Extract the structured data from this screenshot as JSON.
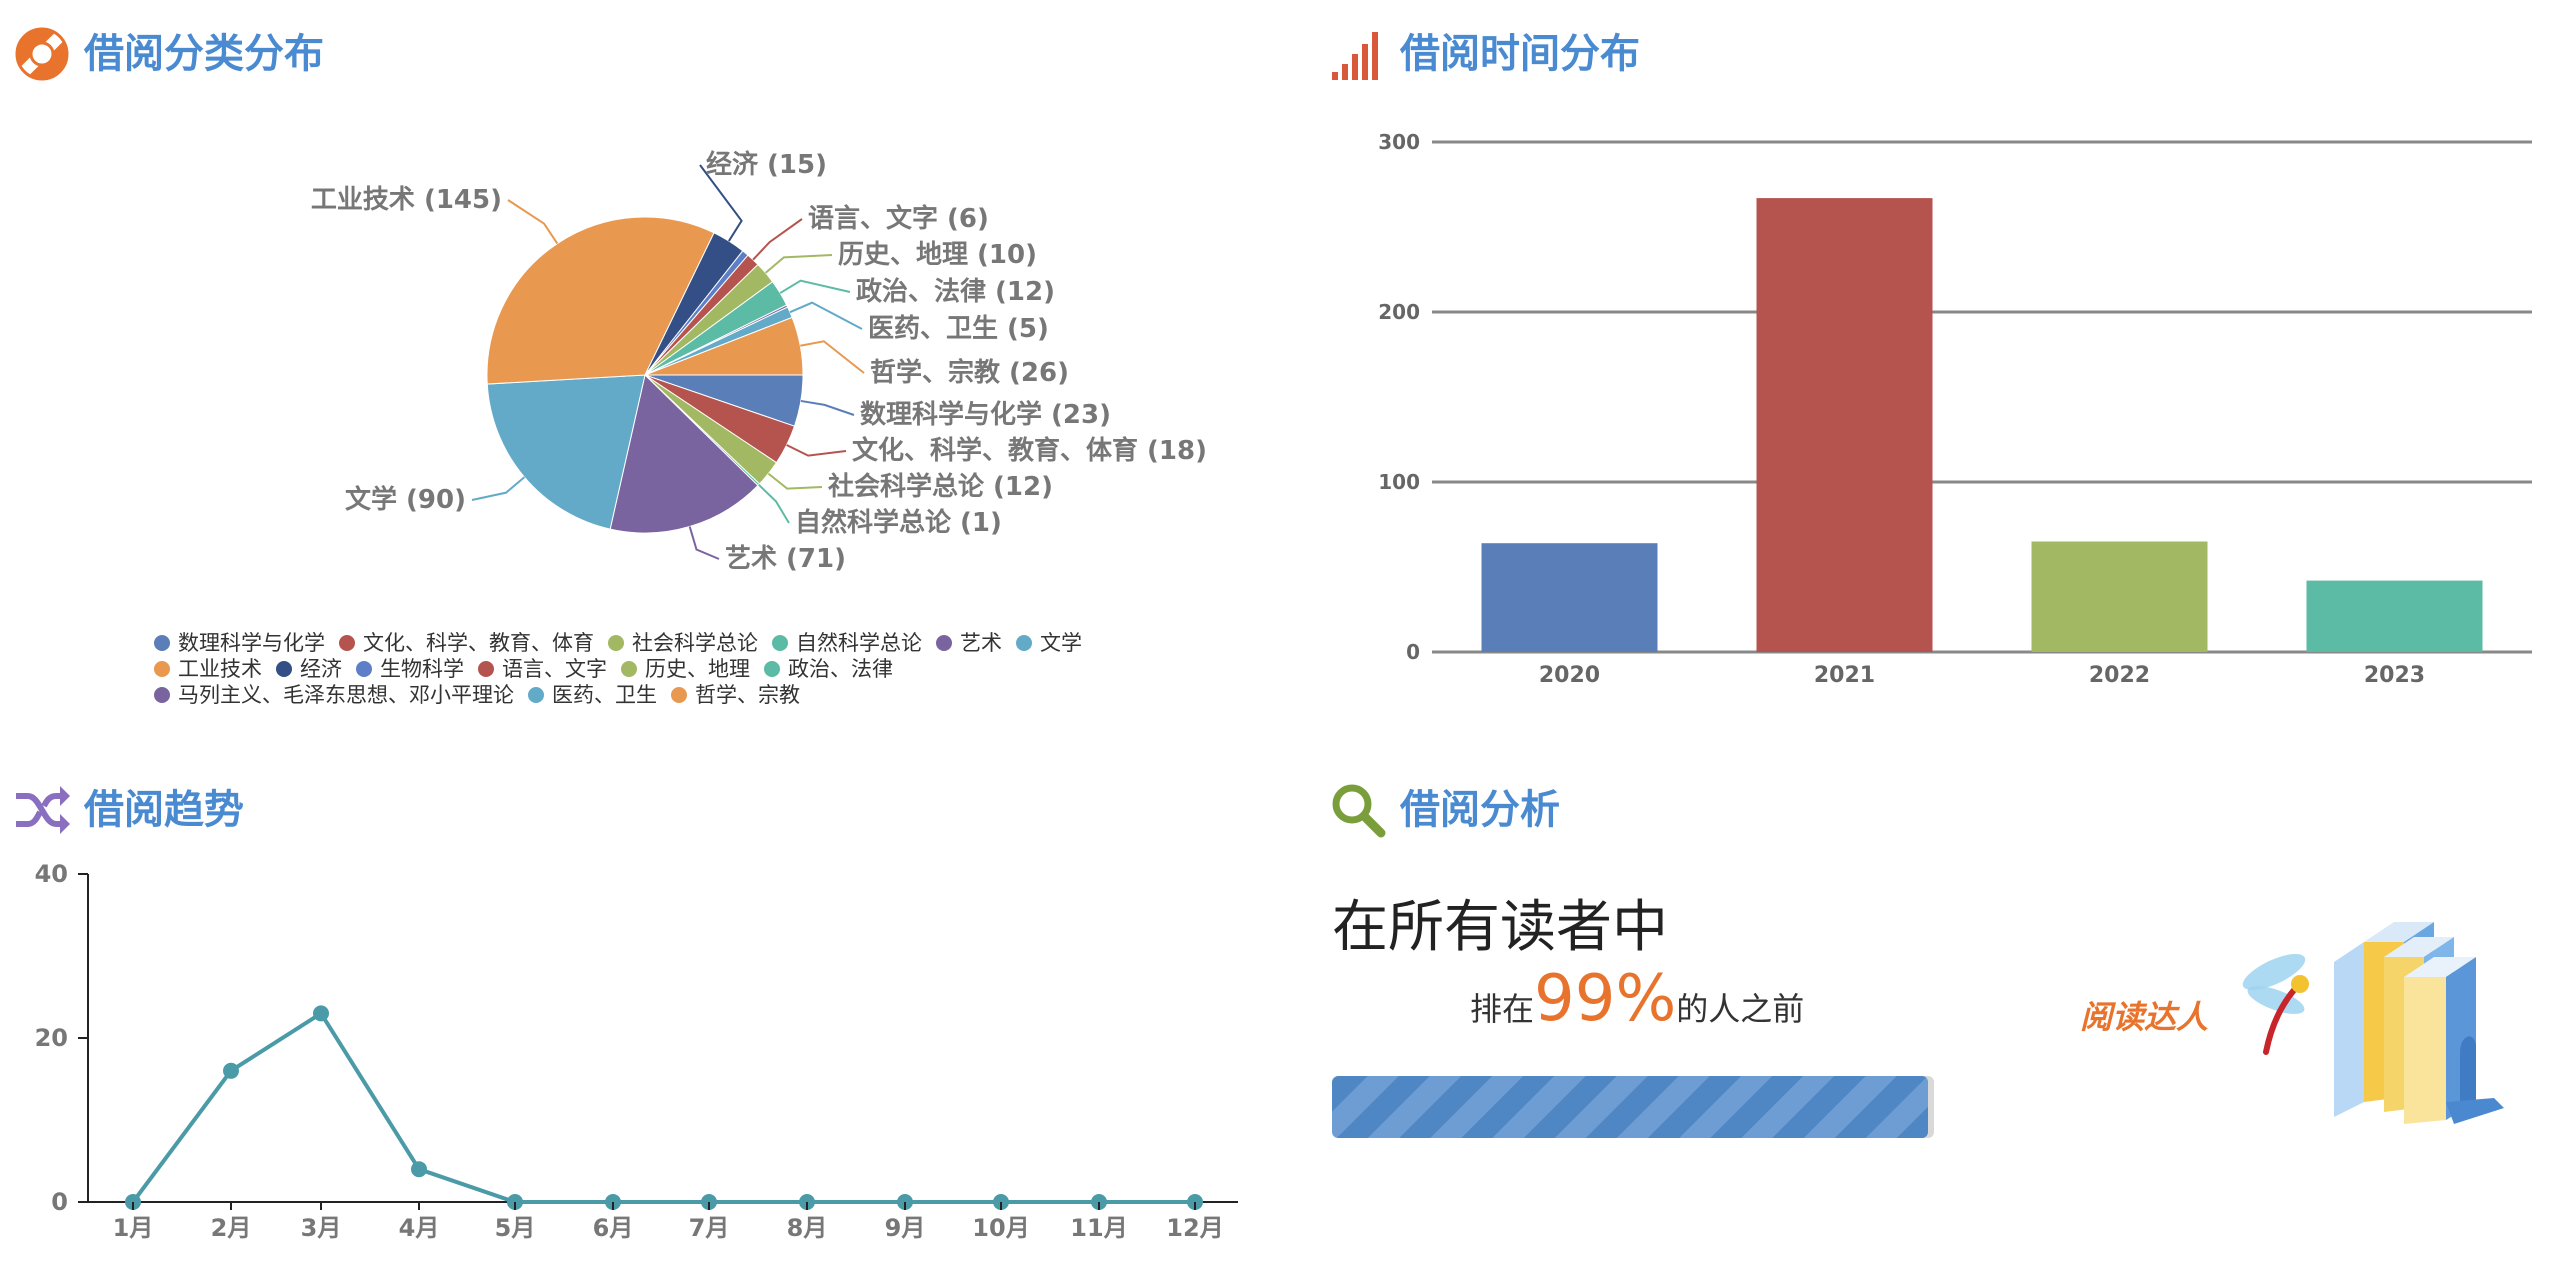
{
  "panels": {
    "category": {
      "title": "借阅分类分布",
      "icon": "lifebuoy-icon",
      "icon_color": "#e8732d"
    },
    "time": {
      "title": "借阅时间分布",
      "icon": "signal-bars-icon",
      "icon_color": "#d9573a"
    },
    "trend": {
      "title": "借阅趋势",
      "icon": "shuffle-icon",
      "icon_color": "#8a6fc0"
    },
    "analysis": {
      "title": "借阅分析",
      "icon": "search-icon",
      "icon_color": "#7a9e3c"
    }
  },
  "analysis": {
    "heading": "在所有读者中",
    "prefix": "排在",
    "percent": "99%",
    "suffix": "的人之前",
    "progress": 0.99,
    "badge_text": "阅读达人"
  },
  "chart_data": [
    {
      "type": "pie",
      "slices": [
        {
          "name": "数理科学与化学",
          "value": 23,
          "label": "数理科学与化学 (23)",
          "color": "#5a7fb8"
        },
        {
          "name": "文化、科学、教育、体育",
          "value": 18,
          "label": "文化、科学、教育、体育 (18)",
          "color": "#b5534f"
        },
        {
          "name": "社会科学总论",
          "value": 12,
          "label": "社会科学总论 (12)",
          "color": "#a2b862"
        },
        {
          "name": "自然科学总论",
          "value": 1,
          "label": "自然科学总论 (1)",
          "color": "#5bbba5"
        },
        {
          "name": "艺术",
          "value": 71,
          "label": "艺术 (71)",
          "color": "#7a64a0"
        },
        {
          "name": "文学",
          "value": 90,
          "label": "文学 (90)",
          "color": "#62aac8"
        },
        {
          "name": "工业技术",
          "value": 145,
          "label": "工业技术 (145)",
          "color": "#e8984f"
        },
        {
          "name": "经济",
          "value": 15,
          "label": "经济 (15)",
          "color": "#344f85"
        },
        {
          "name": "生物科学",
          "value": 3,
          "label": "",
          "color": "#5d7fc8"
        },
        {
          "name": "语言、文字",
          "value": 6,
          "label": "语言、文字 (6)",
          "color": "#b5534f"
        },
        {
          "name": "历史、地理",
          "value": 10,
          "label": "历史、地理 (10)",
          "color": "#a2b862"
        },
        {
          "name": "政治、法律",
          "value": 12,
          "label": "政治、法律 (12)",
          "color": "#5bbba5"
        },
        {
          "name": "马列主义、毛泽东思想、邓小平理论",
          "value": 1,
          "label": "",
          "color": "#7a64a0"
        },
        {
          "name": "医药、卫生",
          "value": 5,
          "label": "医药、卫生 (5)",
          "color": "#62aac8"
        },
        {
          "name": "哲学、宗教",
          "value": 26,
          "label": "哲学、宗教 (26)",
          "color": "#e8984f"
        }
      ]
    },
    {
      "type": "bar",
      "categories": [
        "2020",
        "2021",
        "2022",
        "2023"
      ],
      "values": [
        64,
        267,
        65,
        42
      ],
      "colors": [
        "#5a7fb8",
        "#b5534f",
        "#a2b862",
        "#5bbba5"
      ],
      "ylim": [
        0,
        300
      ],
      "yticks": [
        "0",
        "100",
        "200",
        "300"
      ],
      "grid": true
    },
    {
      "type": "line",
      "categories": [
        "1月",
        "2月",
        "3月",
        "4月",
        "5月",
        "6月",
        "7月",
        "8月",
        "9月",
        "10月",
        "11月",
        "12月"
      ],
      "values": [
        0,
        16,
        23,
        4,
        0,
        0,
        0,
        0,
        0,
        0,
        0,
        0
      ],
      "color": "#4a9aa8",
      "ylim": [
        0,
        40
      ],
      "yticks": [
        "0",
        "20",
        "40"
      ]
    }
  ]
}
